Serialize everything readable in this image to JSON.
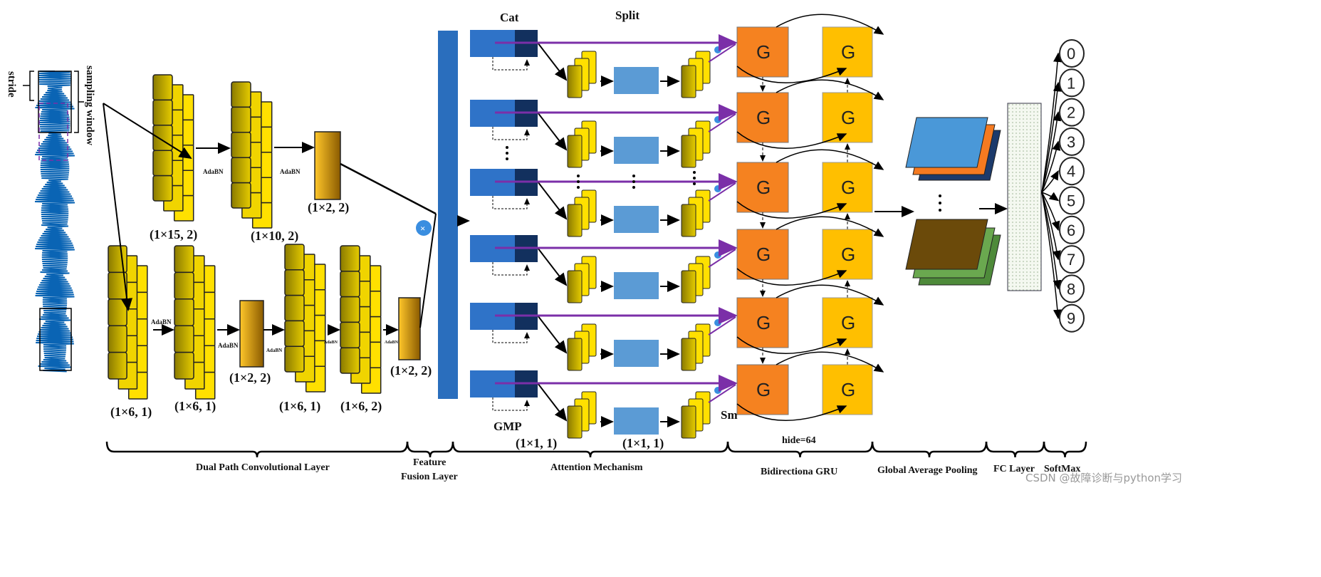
{
  "input": {
    "stride_label": "stride",
    "window_label": "sampling window"
  },
  "conv": {
    "top_labels": [
      "(1×15, 2)",
      "(1×10, 2)",
      "(1×2, 2)"
    ],
    "bottom_labels": [
      "(1×6, 1)",
      "(1×6, 1)",
      "(1×2, 2)",
      "(1×6, 1)",
      "(1×6, 2)",
      "(1×2, 2)"
    ],
    "adabn": "AdaBN",
    "multiply_symbol": "×"
  },
  "attention": {
    "cat": "Cat",
    "split": "Split",
    "gmp": "GMP",
    "kernel_a": "(1×1, 1)",
    "kernel_b": "(1×1, 1)",
    "sm": "Sm",
    "rows": 6
  },
  "gru": {
    "cell": "G",
    "hide": "hide=64"
  },
  "softmax_outputs": [
    "0",
    "1",
    "2",
    "3",
    "4",
    "5",
    "6",
    "7",
    "8",
    "9"
  ],
  "sections": [
    "Dual Path  Convolutional Layer",
    "Feature",
    "Fusion Layer",
    "Attention Mechanism",
    "Bidirectiona GRU",
    "Global Average Pooling",
    "FC Layer",
    "SoftMax"
  ],
  "watermark": "CSDN @故障诊断与python学习",
  "colors": {
    "conv_yellow": "#FFE000",
    "conv_dark": "#8a7a00",
    "fusion_blue": "#2a6ebd",
    "purple": "#7b2fa8",
    "gru_orange": "#F58220",
    "gru_yellow": "#FFBF00",
    "signal_blue": "#0a64b4"
  }
}
